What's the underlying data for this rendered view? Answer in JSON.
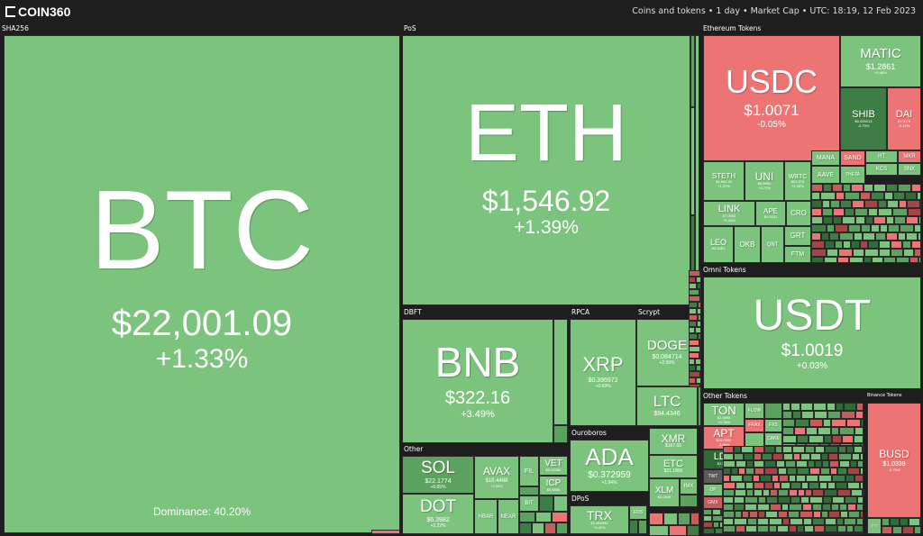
{
  "header": {
    "logo": "COIN360",
    "info": "Coins and tokens • 1 day • Market Cap • UTC: 18:19, 12 Feb 2023"
  },
  "sectors": {
    "sha256": "SHA256",
    "pos": "PoS",
    "eth_tokens": "Ethereum Tokens",
    "omni": "Omni Tokens",
    "dbft": "DBFT",
    "rpca": "RPCA",
    "scrypt": "Scrypt",
    "other": "Other",
    "ouroboros": "Ouroboros",
    "dpos": "DPoS",
    "other_tokens": "Other Tokens",
    "binance_tokens": "Binance Tokens"
  },
  "coins": {
    "btc": {
      "symbol": "BTC",
      "price": "$22,001.09",
      "change": "+1.33%",
      "dominance": "Dominance: 40.20%"
    },
    "eth": {
      "symbol": "ETH",
      "price": "$1,546.92",
      "change": "+1.39%"
    },
    "usdc": {
      "symbol": "USDC",
      "price": "$1.0071",
      "change": "-0.05%"
    },
    "matic": {
      "symbol": "MATIC",
      "price": "$1.2861",
      "change": "+5.48%"
    },
    "shib": {
      "symbol": "SHIB",
      "price": "$0.000013",
      "change": "-0.79%"
    },
    "dai": {
      "symbol": "DAI",
      "price": "$1.0075",
      "change": "-0.12%"
    },
    "steth": {
      "symbol": "STETH",
      "price": "$1,541.99",
      "change": "+1.37%"
    },
    "uni": {
      "symbol": "UNI",
      "price": "$6.5954",
      "change": "+3.71%"
    },
    "wbtc": {
      "symbol": "WBTC",
      "price": "$21,975",
      "change": "+1.25%"
    },
    "mana": {
      "symbol": "MANA"
    },
    "sand": {
      "symbol": "SAND"
    },
    "ht": {
      "symbol": "HT"
    },
    "mkr": {
      "symbol": "MKR"
    },
    "aave": {
      "symbol": "AAVE"
    },
    "theta": {
      "symbol": "THETA"
    },
    "kcs": {
      "symbol": "KCS"
    },
    "snx": {
      "symbol": "SNX"
    },
    "link": {
      "symbol": "LINK",
      "price": "$7.0902",
      "change": "+2.44%"
    },
    "ape": {
      "symbol": "APE",
      "price": "$4.9331"
    },
    "cro": {
      "symbol": "CRO"
    },
    "leo": {
      "symbol": "LEO",
      "price": "$3.3461"
    },
    "okb": {
      "symbol": "OKB"
    },
    "qnt": {
      "symbol": "QNT"
    },
    "grt": {
      "symbol": "GRT"
    },
    "ftm": {
      "symbol": "FTM"
    },
    "usdt": {
      "symbol": "USDT",
      "price": "$1.0019",
      "change": "+0.03%"
    },
    "bnb": {
      "symbol": "BNB",
      "price": "$322.16",
      "change": "+3.49%"
    },
    "xrp": {
      "symbol": "XRP",
      "price": "$0.395972",
      "change": "+0.69%"
    },
    "doge": {
      "symbol": "DOGE",
      "price": "$0.084714",
      "change": "+2.99%"
    },
    "ltc": {
      "symbol": "LTC",
      "price": "$94.4346",
      "change": "+3.71%"
    },
    "sol": {
      "symbol": "SOL",
      "price": "$22.1774",
      "change": "+6.65%"
    },
    "avax": {
      "symbol": "AVAX",
      "price": "$18.4488",
      "change": "+3.05%"
    },
    "fil": {
      "symbol": "FIL"
    },
    "vet": {
      "symbol": "VET",
      "price": "$0.02280"
    },
    "icp": {
      "symbol": "ICP",
      "price": "$5.8888"
    },
    "dot": {
      "symbol": "DOT",
      "price": "$6.3982",
      "change": "+2.22%"
    },
    "hbar": {
      "symbol": "HBAR"
    },
    "near": {
      "symbol": "NEAR"
    },
    "bit": {
      "symbol": "BIT"
    },
    "ada": {
      "symbol": "ADA",
      "price": "$0.372959",
      "change": "+1.94%"
    },
    "xmr": {
      "symbol": "XMR",
      "price": "$167.55"
    },
    "etc": {
      "symbol": "ETC",
      "price": "$21.1895"
    },
    "xlm": {
      "symbol": "XLM",
      "price": "$0.0849"
    },
    "imx": {
      "symbol": "IMX"
    },
    "trx": {
      "symbol": "TRX",
      "price": "$0.064095",
      "change": "+0.40%"
    },
    "eos": {
      "symbol": "EOS"
    },
    "ton": {
      "symbol": "TON",
      "price": "$2.3695",
      "change": "+0.76%"
    },
    "flow": {
      "symbol": "FLOW"
    },
    "apt": {
      "symbol": "APT",
      "price": "$15.0862",
      "change": "-3.96%"
    },
    "frax": {
      "symbol": "FRAX"
    },
    "fxs": {
      "symbol": "FXS"
    },
    "ldo": {
      "symbol": "LDO",
      "price": "$2.5961"
    },
    "cake": {
      "symbol": "CAKE"
    },
    "twt": {
      "symbol": "TWT"
    },
    "op": {
      "symbol": "OP"
    },
    "gmx": {
      "symbol": "GMX"
    },
    "busd": {
      "symbol": "BUSD",
      "price": "$1.0339",
      "change": "-0.79%"
    },
    "ttt": {
      "symbol": "TTT"
    }
  },
  "colors": {
    "up_light": "#7cc37e",
    "up_mid": "#5ca160",
    "up_dark": "#3e7d43",
    "down_light": "#ec7474",
    "down_dark": "#a64343",
    "background": "#1e1e1e"
  }
}
